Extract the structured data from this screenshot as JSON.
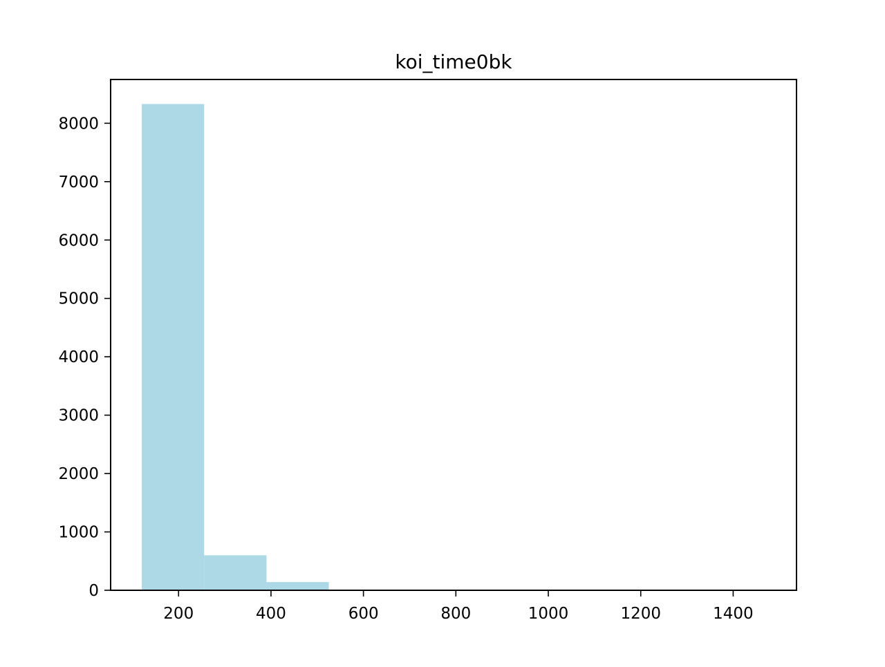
{
  "chart_data": {
    "type": "bar",
    "title": "koi_time0bk",
    "xlabel": "",
    "ylabel": "",
    "bins": [
      {
        "start": 120.5,
        "end": 255.4,
        "count": 8330
      },
      {
        "start": 255.4,
        "end": 390.3,
        "count": 600
      },
      {
        "start": 390.3,
        "end": 525.2,
        "count": 140
      },
      {
        "start": 525.2,
        "end": 660.1,
        "count": 5
      },
      {
        "start": 660.1,
        "end": 795.0,
        "count": 0
      },
      {
        "start": 795.0,
        "end": 929.9,
        "count": 0
      },
      {
        "start": 929.9,
        "end": 1064.8,
        "count": 0
      },
      {
        "start": 1064.8,
        "end": 1199.7,
        "count": 0
      },
      {
        "start": 1199.7,
        "end": 1334.6,
        "count": 0
      },
      {
        "start": 1334.6,
        "end": 1469.5,
        "count": 1
      }
    ],
    "xlim": [
      53,
      1537
    ],
    "ylim": [
      0,
      8750
    ],
    "xticks": [
      200,
      400,
      600,
      800,
      1000,
      1200,
      1400
    ],
    "xtick_labels": [
      "200",
      "400",
      "600",
      "800",
      "1000",
      "1200",
      "1400"
    ],
    "yticks": [
      0,
      1000,
      2000,
      3000,
      4000,
      5000,
      6000,
      7000,
      8000
    ],
    "ytick_labels": [
      "0",
      "1000",
      "2000",
      "3000",
      "4000",
      "5000",
      "6000",
      "7000",
      "8000"
    ],
    "bar_color": "#add8e6",
    "grid": false,
    "legend": "none"
  }
}
